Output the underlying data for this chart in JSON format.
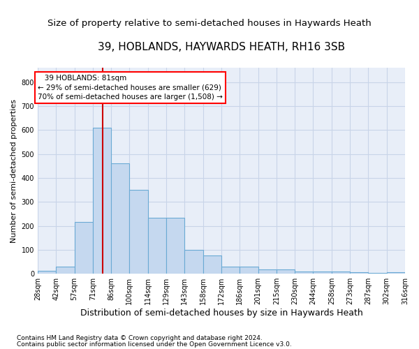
{
  "title": "39, HOBLANDS, HAYWARDS HEATH, RH16 3SB",
  "subtitle": "Size of property relative to semi-detached houses in Haywards Heath",
  "xlabel": "Distribution of semi-detached houses by size in Haywards Heath",
  "ylabel": "Number of semi-detached properties",
  "footnote1": "Contains HM Land Registry data © Crown copyright and database right 2024.",
  "footnote2": "Contains public sector information licensed under the Open Government Licence v3.0.",
  "categories": [
    "28sqm",
    "42sqm",
    "57sqm",
    "71sqm",
    "86sqm",
    "100sqm",
    "114sqm",
    "129sqm",
    "143sqm",
    "158sqm",
    "172sqm",
    "186sqm",
    "201sqm",
    "215sqm",
    "230sqm",
    "244sqm",
    "258sqm",
    "273sqm",
    "287sqm",
    "302sqm",
    "316sqm"
  ],
  "values": [
    12,
    30,
    215,
    610,
    460,
    350,
    233,
    233,
    100,
    77,
    30,
    30,
    18,
    18,
    10,
    8,
    8,
    5,
    3,
    5
  ],
  "bar_color": "#c5d8ef",
  "bar_edge_color": "#6aaad4",
  "vline_x": 3.55,
  "annotation_text1": "39 HOBLANDS: 81sqm",
  "annotation_text2": "← 29% of semi-detached houses are smaller (629)",
  "annotation_text3": "70% of semi-detached houses are larger (1,508) →",
  "vline_color": "#cc0000",
  "ylim": [
    0,
    860
  ],
  "yticks": [
    0,
    100,
    200,
    300,
    400,
    500,
    600,
    700,
    800
  ],
  "grid_color": "#c8d4e8",
  "bg_color": "#e8eef8",
  "title_fontsize": 11,
  "subtitle_fontsize": 9.5,
  "xlabel_fontsize": 9,
  "ylabel_fontsize": 8,
  "tick_fontsize": 7,
  "footnote_fontsize": 6.5
}
